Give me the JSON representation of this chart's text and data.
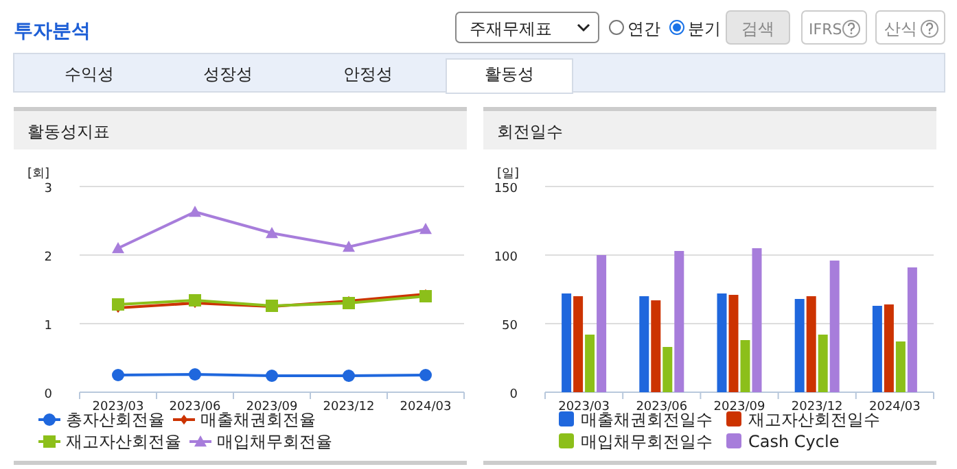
{
  "chart_data": [
    {
      "type": "other",
      "title": "투자분석",
      "annotations": [
        "주재무제표",
        "연간",
        "분기",
        "검색",
        "IFRS",
        "산식",
        "수익성",
        "성장성",
        "안정성",
        "활동성"
      ]
    },
    {
      "type": "line",
      "title": "활동성지표",
      "ylabel": "[회]",
      "categories": [
        "2023/03",
        "2023/06",
        "2023/09",
        "2023/12",
        "2024/03"
      ],
      "ylim": [
        0,
        3
      ],
      "yticks": [
        0,
        1,
        2,
        3
      ],
      "grid": "y",
      "legend": "bottom",
      "series": [
        {
          "name": "총자산회전율",
          "color": "#1f67dd",
          "marker": "circle",
          "values": [
            0.25,
            0.26,
            0.24,
            0.24,
            0.25
          ]
        },
        {
          "name": "매출채권회전율",
          "color": "#cc3300",
          "marker": "diamond",
          "values": [
            1.23,
            1.3,
            1.25,
            1.33,
            1.43
          ]
        },
        {
          "name": "재고자산회전율",
          "color": "#8cbf1a",
          "marker": "square",
          "values": [
            1.28,
            1.34,
            1.26,
            1.3,
            1.4
          ]
        },
        {
          "name": "매입채무회전율",
          "color": "#a77ddb",
          "marker": "triangle",
          "values": [
            2.1,
            2.63,
            2.32,
            2.12,
            2.38
          ]
        }
      ]
    },
    {
      "type": "bar",
      "title": "회전일수",
      "ylabel": "[일]",
      "categories": [
        "2023/03",
        "2023/06",
        "2023/09",
        "2023/12",
        "2024/03"
      ],
      "ylim": [
        0,
        150
      ],
      "yticks": [
        0,
        50,
        100,
        150
      ],
      "grid": "y",
      "legend": "bottom",
      "series": [
        {
          "name": "매출채권회전일수",
          "color": "#1f67dd",
          "values": [
            72,
            70,
            72,
            68,
            63
          ]
        },
        {
          "name": "재고자산회전일수",
          "color": "#cc3300",
          "values": [
            70,
            67,
            71,
            70,
            64
          ]
        },
        {
          "name": "매입채무회전일수",
          "color": "#8cbf1a",
          "values": [
            42,
            33,
            38,
            42,
            37
          ]
        },
        {
          "name": "Cash Cycle",
          "color": "#a77ddb",
          "values": [
            100,
            103,
            105,
            96,
            91
          ]
        }
      ]
    }
  ]
}
